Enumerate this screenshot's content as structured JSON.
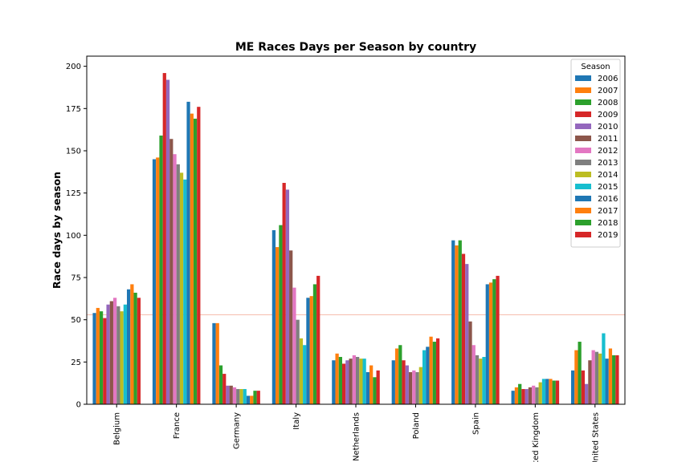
{
  "chart_data": {
    "type": "bar",
    "title": "ME Races Days per Season by country",
    "xlabel": "",
    "ylabel": "Race days by season",
    "ylim": [
      0,
      206
    ],
    "yticks": [
      0,
      25,
      50,
      75,
      100,
      125,
      150,
      175,
      200
    ],
    "grid": false,
    "legend": {
      "title": "Season",
      "placement": "top-right"
    },
    "reference_line": {
      "y": 53,
      "color": "#f4b8a8"
    },
    "categories": [
      "Belgium",
      "France",
      "Germany",
      "Italy",
      "Netherlands",
      "Poland",
      "Spain",
      "United Kingdom",
      "United States"
    ],
    "series": [
      {
        "name": "2006",
        "color": "#1f77b4",
        "values": [
          54,
          145,
          48,
          103,
          26,
          26,
          97,
          8,
          20
        ]
      },
      {
        "name": "2007",
        "color": "#ff7f0e",
        "values": [
          57,
          146,
          48,
          93,
          30,
          33,
          94,
          10,
          32
        ]
      },
      {
        "name": "2008",
        "color": "#2ca02c",
        "values": [
          55,
          159,
          23,
          106,
          28,
          35,
          97,
          12,
          37
        ]
      },
      {
        "name": "2009",
        "color": "#d62728",
        "values": [
          51,
          196,
          18,
          131,
          24,
          26,
          89,
          9,
          20
        ]
      },
      {
        "name": "2010",
        "color": "#9467bd",
        "values": [
          59,
          192,
          11,
          127,
          26,
          23,
          83,
          9,
          12
        ]
      },
      {
        "name": "2011",
        "color": "#8c564b",
        "values": [
          61,
          157,
          11,
          91,
          27,
          19,
          49,
          10,
          26
        ]
      },
      {
        "name": "2012",
        "color": "#e377c2",
        "values": [
          63,
          148,
          10,
          69,
          29,
          20,
          35,
          11,
          32
        ]
      },
      {
        "name": "2013",
        "color": "#7f7f7f",
        "values": [
          58,
          142,
          9,
          50,
          28,
          19,
          29,
          10,
          31
        ]
      },
      {
        "name": "2014",
        "color": "#bcbd22",
        "values": [
          55,
          137,
          9,
          39,
          27,
          22,
          27,
          13,
          30
        ]
      },
      {
        "name": "2015",
        "color": "#17becf",
        "values": [
          59,
          133,
          9,
          35,
          27,
          32,
          28,
          15,
          42
        ]
      },
      {
        "name": "2016",
        "color": "#1f77b4",
        "values": [
          68,
          179,
          5,
          63,
          19,
          34,
          71,
          15,
          27
        ]
      },
      {
        "name": "2017",
        "color": "#ff7f0e",
        "values": [
          71,
          172,
          5,
          64,
          23,
          40,
          72,
          15,
          33
        ]
      },
      {
        "name": "2018",
        "color": "#2ca02c",
        "values": [
          66,
          169,
          8,
          71,
          16,
          37,
          74,
          14,
          29
        ]
      },
      {
        "name": "2019",
        "color": "#d62728",
        "values": [
          63,
          176,
          8,
          76,
          20,
          39,
          76,
          14,
          29
        ]
      }
    ]
  }
}
